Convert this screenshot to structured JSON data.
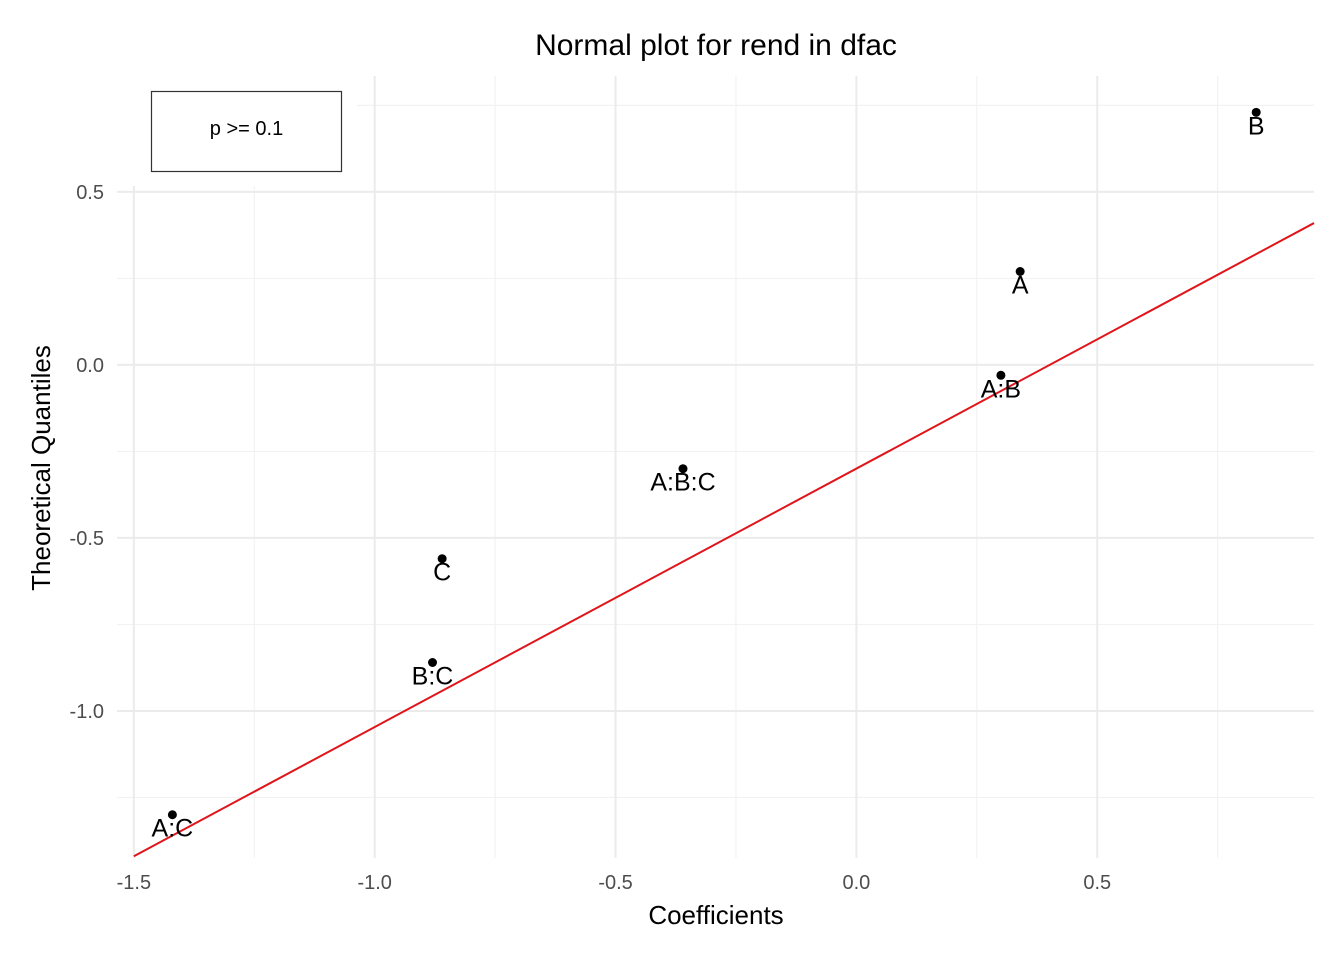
{
  "chart_data": {
    "type": "scatter",
    "title": "Normal plot for rend in dfac",
    "xlabel": "Coefficients",
    "ylabel": "Theoretical Quantiles",
    "xlim": [
      -1.535,
      0.95
    ],
    "ylim": [
      -1.425,
      0.835
    ],
    "x_ticks": [
      -1.5,
      -1.0,
      -0.5,
      0.0,
      0.5
    ],
    "x_tick_labels": [
      "-1.5",
      "-1.0",
      "-0.5",
      "0.0",
      "0.5"
    ],
    "y_ticks": [
      -1.0,
      -0.5,
      0.0,
      0.5
    ],
    "y_tick_labels": [
      "-1.0",
      "-0.5",
      "0.0",
      "0.5"
    ],
    "grid": true,
    "legend": {
      "placement": "top-left",
      "entries": [
        "p >= 0.1"
      ]
    },
    "points": [
      {
        "label": "A:C",
        "x": -1.42,
        "y": -1.3
      },
      {
        "label": "B:C",
        "x": -0.88,
        "y": -0.86
      },
      {
        "label": "C",
        "x": -0.86,
        "y": -0.56
      },
      {
        "label": "A:B:C",
        "x": -0.36,
        "y": -0.3
      },
      {
        "label": "A:B",
        "x": 0.3,
        "y": -0.03
      },
      {
        "label": "A",
        "x": 0.34,
        "y": 0.27
      },
      {
        "label": "B",
        "x": 0.83,
        "y": 0.73
      }
    ],
    "reference_line": {
      "color": "#e0151b",
      "points": [
        [
          -1.5,
          -1.42
        ],
        [
          0.95,
          0.41
        ]
      ]
    },
    "point_color": "#000000"
  }
}
